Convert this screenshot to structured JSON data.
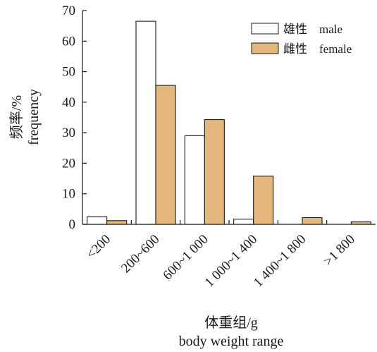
{
  "chart_data": {
    "type": "bar",
    "categories": [
      "<200",
      "200~600",
      "600~1 000",
      "1 000~1 400",
      "1 400~1 800",
      ">1 800"
    ],
    "series": [
      {
        "name": "雄性　male",
        "values": [
          2.5,
          66.5,
          29.0,
          1.7,
          0,
          0
        ],
        "color": "#ffffff"
      },
      {
        "name": "雌性　female",
        "values": [
          1.2,
          45.5,
          34.3,
          15.8,
          2.2,
          0.8
        ],
        "color": "#e3b77b"
      }
    ],
    "xlabel": [
      "体重组/g",
      "body weight range"
    ],
    "ylabel": [
      "频率/%",
      "frequency"
    ],
    "ylim": [
      0,
      70
    ],
    "yticks": [
      0,
      10,
      20,
      30,
      40,
      50,
      60,
      70
    ],
    "grid": false,
    "legend": "top-right"
  }
}
